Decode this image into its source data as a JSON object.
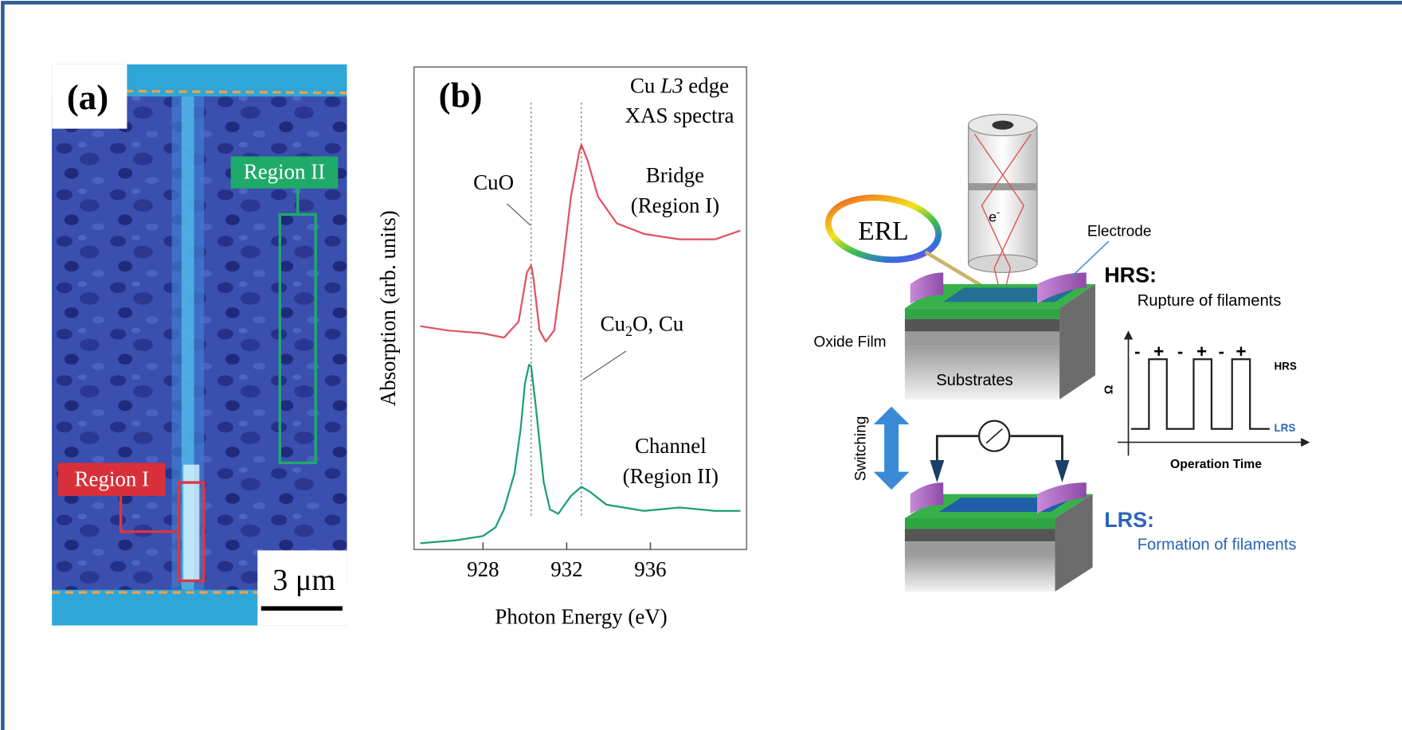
{
  "panel_a": {
    "label": "(a)",
    "region_2": "Region II",
    "region_1": "Region I",
    "scale_bar": "3 μm"
  },
  "chart_data": {
    "type": "line",
    "panel_label": "(b)",
    "title": {
      "element": "Cu",
      "edge_name": "L3",
      "rest": "edge"
    },
    "subtitle": "XAS spectra",
    "x_label": "Photon Energy (eV)",
    "y_label": "Absorption (arb. units)",
    "xlim": [
      924.7,
      940.6
    ],
    "ylim": [
      0,
      10
    ],
    "xticks": [
      928,
      932,
      936
    ],
    "reference_lines": [
      930.3,
      932.7
    ],
    "reference_labels": {
      "cuo": "CuO",
      "cu2o": [
        "Cu",
        "2",
        "O, Cu"
      ]
    },
    "series": [
      {
        "name": "Bridge",
        "sublabel": "(Region I)",
        "color": "#e2525d",
        "x": [
          925.0,
          926.3,
          928.0,
          929.0,
          929.7,
          930.1,
          930.3,
          930.4,
          930.7,
          931.0,
          931.4,
          931.8,
          932.2,
          932.6,
          932.7,
          933.0,
          933.5,
          934.4,
          935.7,
          937.4,
          939.1,
          940.3
        ],
        "values": [
          4.63,
          4.54,
          4.48,
          4.39,
          4.72,
          5.74,
          5.89,
          5.65,
          4.54,
          4.31,
          4.54,
          5.83,
          7.31,
          8.24,
          8.39,
          8.06,
          7.31,
          6.76,
          6.54,
          6.43,
          6.43,
          6.61
        ]
      },
      {
        "name": "Channel",
        "sublabel": "(Region II)",
        "color": "#1f9e74",
        "x": [
          925.0,
          926.7,
          928.0,
          928.6,
          929.0,
          929.5,
          929.8,
          930.0,
          930.2,
          930.3,
          930.5,
          930.9,
          931.2,
          931.6,
          932.2,
          932.7,
          933.1,
          933.9,
          935.7,
          937.4,
          939.1,
          940.3
        ],
        "values": [
          0.13,
          0.19,
          0.28,
          0.46,
          0.83,
          1.57,
          2.5,
          3.43,
          3.83,
          3.8,
          3.06,
          1.39,
          0.83,
          0.74,
          1.11,
          1.3,
          1.2,
          0.93,
          0.8,
          0.87,
          0.8,
          0.8
        ]
      }
    ]
  },
  "schematic": {
    "erl": "ERL",
    "electron": [
      "e",
      "-"
    ],
    "electrode": "Electrode",
    "hrs_title": "HRS:",
    "hrs_text": "Rupture of filaments",
    "oxide_film": "Oxide Film",
    "substrates": "Substrates",
    "switching": "Switching",
    "lrs_title": "LRS:",
    "lrs_text": "Formation of filaments",
    "graph": {
      "y_label": "Ω",
      "x_label": "Operation Time",
      "high": "HRS",
      "low": "LRS",
      "signs": [
        "-",
        "+",
        "-",
        "+",
        "-",
        "+"
      ]
    }
  }
}
